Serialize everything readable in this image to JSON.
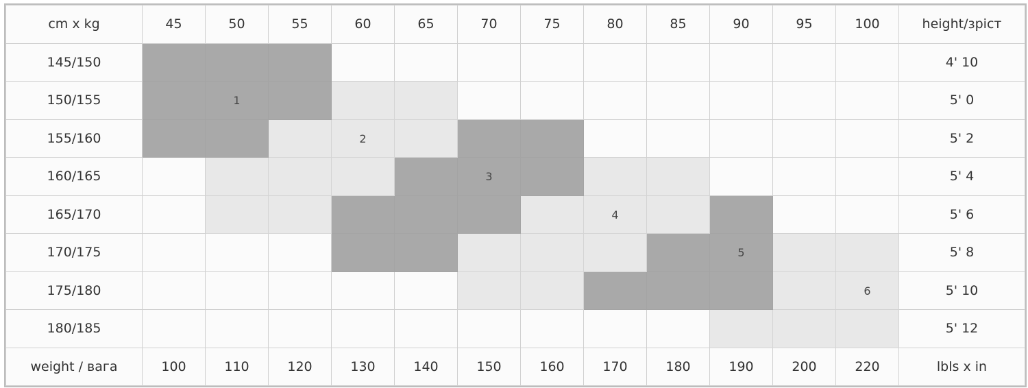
{
  "header": {
    "corner": "cm x kg",
    "weights_kg": [
      "45",
      "50",
      "55",
      "60",
      "65",
      "70",
      "75",
      "80",
      "85",
      "90",
      "95",
      "100"
    ],
    "right": "height/зріст"
  },
  "rows": [
    {
      "cm": "145/150",
      "in": "4' 10",
      "shade": [
        "D",
        "D",
        "D",
        "",
        "",
        "",
        "",
        "",
        "",
        "",
        "",
        ""
      ],
      "labels": [
        "",
        "",
        "",
        "",
        "",
        "",
        "",
        "",
        "",
        "",
        "",
        ""
      ]
    },
    {
      "cm": "150/155",
      "in": "5' 0",
      "shade": [
        "D",
        "D",
        "D",
        "L",
        "L",
        "",
        "",
        "",
        "",
        "",
        "",
        ""
      ],
      "labels": [
        "",
        "1",
        "",
        "",
        "",
        "",
        "",
        "",
        "",
        "",
        "",
        ""
      ]
    },
    {
      "cm": "155/160",
      "in": "5' 2",
      "shade": [
        "D",
        "D",
        "L",
        "L",
        "L",
        "D",
        "D",
        "",
        "",
        "",
        "",
        ""
      ],
      "labels": [
        "",
        "",
        "",
        "2",
        "",
        "",
        "",
        "",
        "",
        "",
        "",
        ""
      ]
    },
    {
      "cm": "160/165",
      "in": "5' 4",
      "shade": [
        "",
        "L",
        "L",
        "L",
        "D",
        "D",
        "D",
        "L",
        "L",
        "",
        "",
        ""
      ],
      "labels": [
        "",
        "",
        "",
        "",
        "",
        "3",
        "",
        "",
        "",
        "",
        "",
        ""
      ]
    },
    {
      "cm": "165/170",
      "in": "5' 6",
      "shade": [
        "",
        "L",
        "L",
        "D",
        "D",
        "D",
        "L",
        "L",
        "L",
        "D",
        "",
        ""
      ],
      "labels": [
        "",
        "",
        "",
        "",
        "",
        "",
        "",
        "4",
        "",
        "",
        "",
        ""
      ]
    },
    {
      "cm": "170/175",
      "in": "5' 8",
      "shade": [
        "",
        "",
        "",
        "D",
        "D",
        "L",
        "L",
        "L",
        "D",
        "D",
        "L",
        "L"
      ],
      "labels": [
        "",
        "",
        "",
        "",
        "",
        "",
        "",
        "",
        "",
        "5",
        "",
        ""
      ]
    },
    {
      "cm": "175/180",
      "in": "5' 10",
      "shade": [
        "",
        "",
        "",
        "",
        "",
        "L",
        "L",
        "D",
        "D",
        "D",
        "L",
        "L"
      ],
      "labels": [
        "",
        "",
        "",
        "",
        "",
        "",
        "",
        "",
        "",
        "",
        "",
        "6"
      ]
    },
    {
      "cm": "180/185",
      "in": "5' 12",
      "shade": [
        "",
        "",
        "",
        "",
        "",
        "",
        "",
        "",
        "",
        "L",
        "L",
        "L"
      ],
      "labels": [
        "",
        "",
        "",
        "",
        "",
        "",
        "",
        "",
        "",
        "",
        "",
        ""
      ]
    }
  ],
  "footer": {
    "corner": "weight / вага",
    "weights_lbs": [
      "100",
      "110",
      "120",
      "130",
      "140",
      "150",
      "160",
      "170",
      "180",
      "190",
      "200",
      "220"
    ],
    "right": "lbls x in"
  },
  "colors": {
    "dark_zone": "#a9a9a9",
    "light_zone": "#e8e8e8",
    "cell": "#fbfbfb",
    "border": "#d0d0d0"
  }
}
